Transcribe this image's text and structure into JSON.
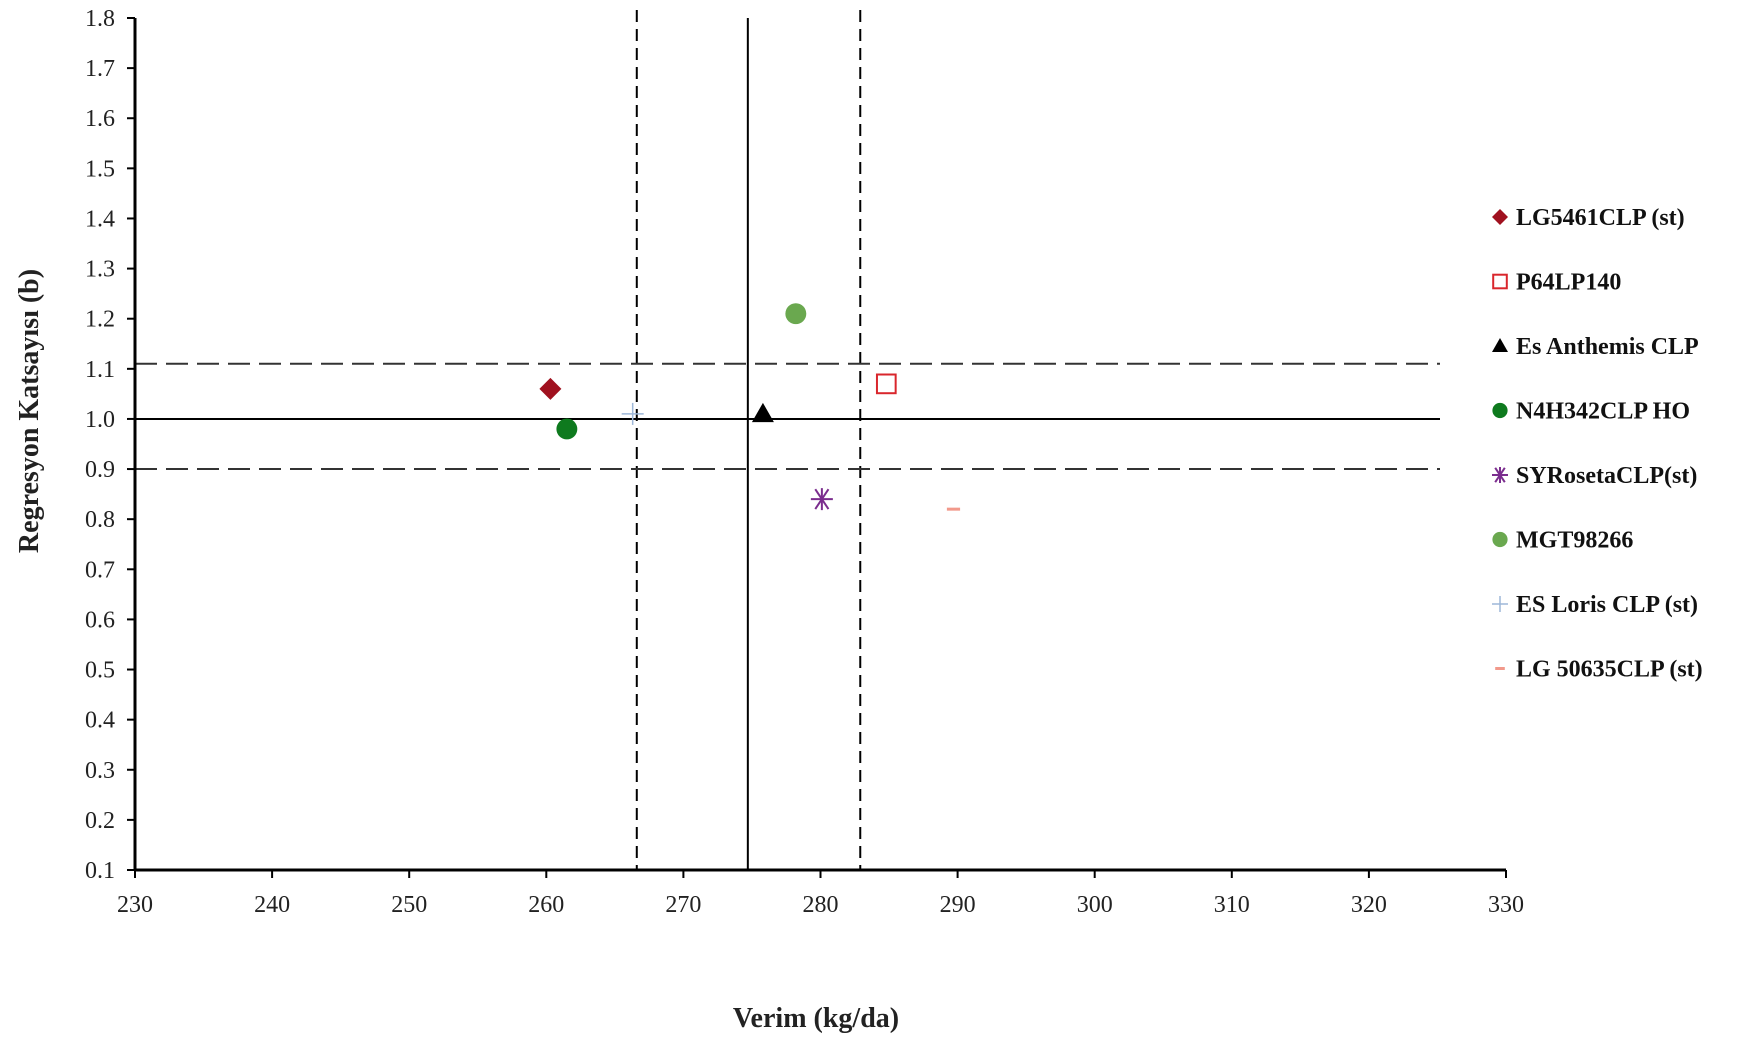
{
  "chart_data": {
    "type": "scatter",
    "title": "",
    "xlabel": "Verim (kg/da)",
    "ylabel": "Regresyon Katsayısı (b)",
    "xlim": [
      230,
      330
    ],
    "ylim": [
      0.1,
      1.8
    ],
    "x_ticks": [
      "230",
      "240",
      "250",
      "260",
      "270",
      "280",
      "290",
      "300",
      "310",
      "320",
      "330"
    ],
    "y_ticks": [
      "0.1",
      "0.2",
      "0.3",
      "0.4",
      "0.5",
      "0.6",
      "0.7",
      "0.8",
      "0.9",
      "1.0",
      "1.1",
      "1.2",
      "1.3",
      "1.4",
      "1.5",
      "1.6",
      "1.7",
      "1.8"
    ],
    "grid": false,
    "legend_position": "right",
    "reference_lines": {
      "vertical_solid": 274.7,
      "vertical_dashed": [
        266.6,
        282.9
      ],
      "horizontal_solid": 1.0,
      "horizontal_dashed": [
        0.9,
        1.11
      ]
    },
    "series": [
      {
        "name": "LG5461CLP (st)",
        "x": 260.3,
        "y": 1.06,
        "marker": "diamond",
        "color": "#A0111F"
      },
      {
        "name": "P64LP140",
        "x": 284.8,
        "y": 1.07,
        "marker": "open-square",
        "color": "#D9262C"
      },
      {
        "name": "Es Anthemis CLP",
        "x": 275.8,
        "y": 1.01,
        "marker": "triangle",
        "color": "#000000"
      },
      {
        "name": "N4H342CLP HO",
        "x": 261.5,
        "y": 0.98,
        "marker": "circle",
        "color": "#0E7A1E"
      },
      {
        "name": "SYRosetaCLP(st)",
        "x": 280.1,
        "y": 0.84,
        "marker": "asterisk",
        "color": "#7B2D8E"
      },
      {
        "name": "MGT98266",
        "x": 278.2,
        "y": 1.21,
        "marker": "circle",
        "color": "#6AA84F"
      },
      {
        "name": "ES Loris CLP (st)",
        "x": 266.3,
        "y": 1.01,
        "marker": "plus",
        "color": "#9DB7D8"
      },
      {
        "name": "LG 50635CLP (st)",
        "x": 289.7,
        "y": 0.82,
        "marker": "dash",
        "color": "#F2998B"
      }
    ]
  }
}
